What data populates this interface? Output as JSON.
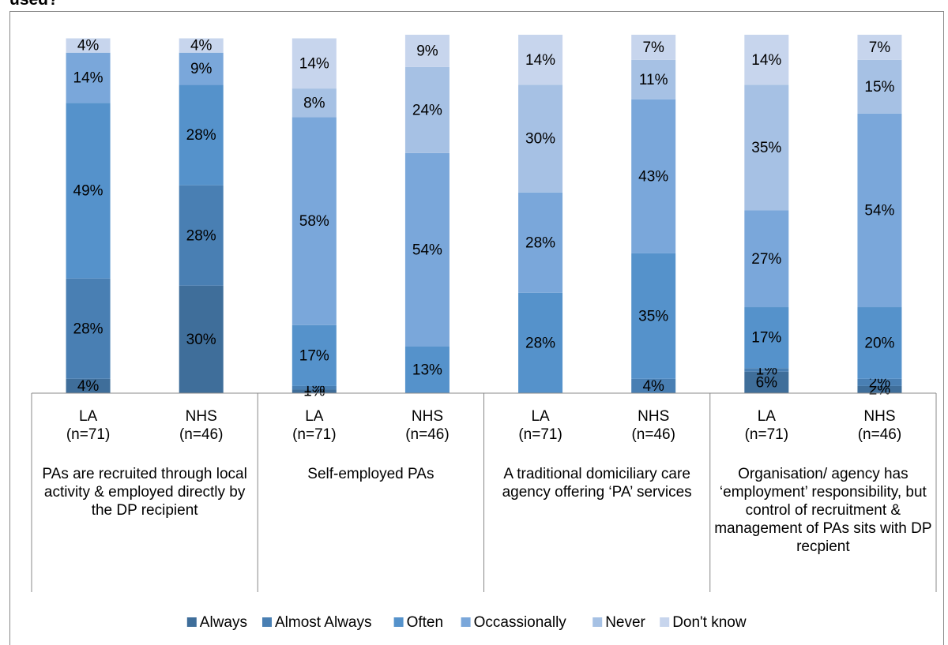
{
  "chart_data": {
    "type": "stacked_bar",
    "title": "used?",
    "groups": [
      "PAs are recruited through local activity & employed directly by the DP recipient",
      "Self-employed PAs",
      "A traditional domiciliary care agency offering ‘PA’ services",
      "Organisation/ agency has ‘employment’ responsibility, but control of recruitment & management of PAs sits with DP recpient"
    ],
    "categories": [
      "LA\n(n=71)",
      "NHS\n(n=46)",
      "LA\n(n=71)",
      "NHS\n(n=46)",
      "LA\n(n=71)",
      "NHS\n(n=46)",
      "LA\n(n=71)",
      "NHS\n(n=46)"
    ],
    "ylim": [
      0,
      100
    ],
    "legend": "bottom",
    "series": [
      {
        "name": "Always",
        "color": "#3f6e9a",
        "values": [
          4,
          30,
          1,
          null,
          null,
          null,
          6,
          2
        ],
        "value_labels": [
          "4%",
          "30%",
          "1%",
          null,
          null,
          null,
          "6%",
          "2%"
        ]
      },
      {
        "name": "Almost Always",
        "color": "#497fb3",
        "values": [
          28,
          28,
          1,
          null,
          null,
          4,
          1,
          2
        ],
        "value_labels": [
          "28%",
          "28%",
          "1%",
          null,
          null,
          "4%",
          "1%",
          "2%"
        ]
      },
      {
        "name": "Often",
        "color": "#5592cb",
        "values": [
          49,
          28,
          17,
          13,
          28,
          35,
          17,
          20
        ],
        "value_labels": [
          "49%",
          "28%",
          "17%",
          "13%",
          "28%",
          "35%",
          "17%",
          "20%"
        ]
      },
      {
        "name": "Occassionally",
        "color": "#7aa7da",
        "values": [
          14,
          9,
          58,
          54,
          28,
          43,
          27,
          54
        ],
        "value_labels": [
          "14%",
          "9%",
          "58%",
          "54%",
          "28%",
          "43%",
          "27%",
          "54%"
        ]
      },
      {
        "name": "Never",
        "color": "#a6c1e4",
        "values": [
          null,
          null,
          8,
          24,
          30,
          11,
          35,
          15
        ],
        "value_labels": [
          null,
          null,
          "8%",
          "24%",
          "30%",
          "11%",
          "35%",
          "15%"
        ]
      },
      {
        "name": "Don't know",
        "color": "#c7d5ed",
        "values": [
          4,
          4,
          14,
          9,
          14,
          7,
          14,
          7
        ],
        "value_labels": [
          "4%",
          "4%",
          "14%",
          "9%",
          "14%",
          "7%",
          "14%",
          "7%"
        ]
      }
    ]
  }
}
